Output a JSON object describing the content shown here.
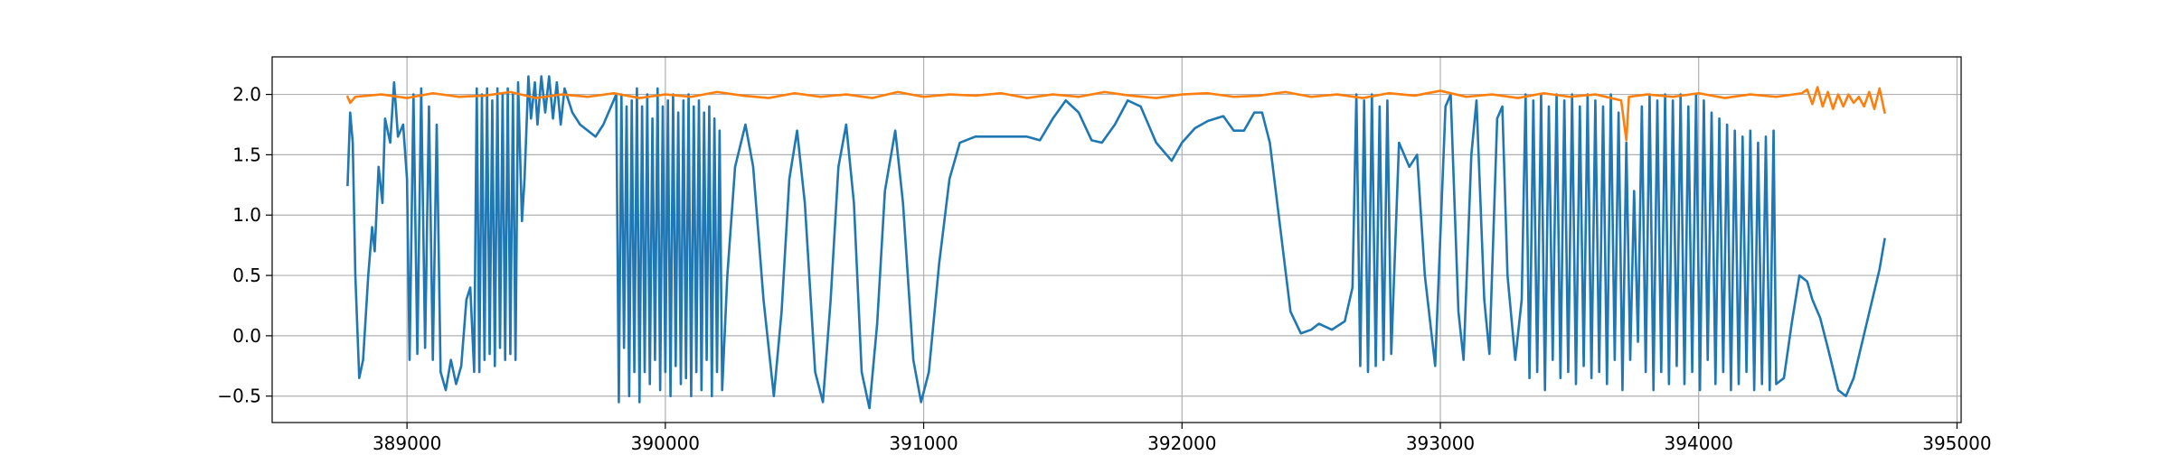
{
  "chart_data": {
    "type": "line",
    "xlim": [
      388478,
      395016
    ],
    "ylim": [
      -0.719,
      2.311
    ],
    "xticks": [
      389000,
      390000,
      391000,
      392000,
      393000,
      394000,
      395000
    ],
    "yticks": [
      {
        "value": -0.5,
        "label": "−0.5"
      },
      {
        "value": 0,
        "label": "0.0"
      },
      0.5,
      {
        "value": 1,
        "label": "1.0"
      },
      1.5,
      {
        "value": 2,
        "label": "2.0"
      }
    ],
    "grid": true,
    "series": [
      {
        "color": "#1f77b4",
        "x": [
          388770,
          388780,
          388790,
          388800,
          388815,
          388830,
          388850,
          388865,
          388875,
          388890,
          388905,
          388915,
          388935,
          388950,
          388965,
          388985,
          389000,
          389010,
          389025,
          389040,
          389055,
          389070,
          389085,
          389100,
          389115,
          389130,
          389150,
          389170,
          389190,
          389210,
          389230,
          389245,
          389260,
          389270,
          389280,
          389290,
          389300,
          389310,
          389320,
          389330,
          389340,
          389350,
          389360,
          389370,
          389380,
          389390,
          389400,
          389410,
          389420,
          389430,
          389445,
          389455,
          389470,
          389480,
          389495,
          389505,
          389520,
          389535,
          389550,
          389565,
          389580,
          389595,
          389610,
          389640,
          389670,
          389700,
          389730,
          389760,
          389790,
          389810,
          389820,
          389830,
          389840,
          389850,
          389860,
          389870,
          389880,
          389890,
          389900,
          389910,
          389920,
          389930,
          389940,
          389950,
          389960,
          389970,
          389980,
          389990,
          390000,
          390010,
          390020,
          390030,
          390040,
          390050,
          390060,
          390070,
          390080,
          390090,
          390100,
          390110,
          390120,
          390130,
          390140,
          390150,
          390160,
          390170,
          390180,
          390190,
          390200,
          390210,
          390220,
          390240,
          390270,
          390310,
          390340,
          390380,
          390420,
          390450,
          390480,
          390510,
          390540,
          390580,
          390610,
          390640,
          390670,
          390700,
          390730,
          390760,
          390790,
          390820,
          390850,
          390890,
          390920,
          390960,
          390990,
          391020,
          391060,
          391100,
          391140,
          391200,
          391300,
          391400,
          391450,
          391500,
          391550,
          391600,
          391650,
          391690,
          391740,
          391790,
          391840,
          391900,
          391960,
          392000,
          392050,
          392100,
          392160,
          392200,
          392240,
          392280,
          392310,
          392340,
          392380,
          392420,
          392460,
          392500,
          392530,
          392580,
          392630,
          392660,
          392675,
          392690,
          392705,
          392720,
          392735,
          392750,
          392765,
          392780,
          392795,
          392810,
          392840,
          392880,
          392910,
          392940,
          392980,
          393020,
          393040,
          393070,
          393090,
          393120,
          393140,
          393170,
          393190,
          393220,
          393240,
          393260,
          393290,
          393315,
          393330,
          393345,
          393360,
          393375,
          393390,
          393405,
          393420,
          393435,
          393450,
          393465,
          393480,
          393495,
          393510,
          393525,
          393540,
          393555,
          393570,
          393585,
          393600,
          393615,
          393630,
          393645,
          393660,
          393675,
          393690,
          393705,
          393720,
          393735,
          393750,
          393765,
          393780,
          393795,
          393810,
          393825,
          393840,
          393855,
          393870,
          393885,
          393900,
          393915,
          393930,
          393945,
          393960,
          393975,
          393990,
          394005,
          394020,
          394035,
          394050,
          394065,
          394080,
          394095,
          394110,
          394125,
          394140,
          394155,
          394170,
          394185,
          394200,
          394215,
          394230,
          394245,
          394260,
          394275,
          394290,
          394300,
          394330,
          394360,
          394390,
          394420,
          394440,
          394470,
          394500,
          394540,
          394570,
          394600,
          394650,
          394700,
          394720
        ],
        "values": [
          1.25,
          1.85,
          1.6,
          0.5,
          -0.35,
          -0.2,
          0.5,
          0.9,
          0.7,
          1.4,
          1.1,
          1.8,
          1.6,
          2.1,
          1.65,
          1.75,
          1.3,
          -0.2,
          2.0,
          -0.15,
          2.05,
          -0.1,
          1.9,
          -0.2,
          1.75,
          -0.3,
          -0.45,
          -0.2,
          -0.4,
          -0.25,
          0.3,
          0.4,
          -0.3,
          2.05,
          -0.3,
          2.0,
          -0.2,
          2.05,
          -0.15,
          1.95,
          -0.25,
          2.05,
          -0.1,
          2.0,
          -0.2,
          2.05,
          -0.15,
          2.0,
          -0.2,
          2.1,
          0.95,
          1.3,
          2.15,
          1.8,
          2.1,
          1.75,
          2.15,
          1.85,
          2.15,
          1.8,
          2.1,
          1.75,
          2.05,
          1.85,
          1.75,
          1.7,
          1.65,
          1.75,
          1.9,
          2.0,
          -0.55,
          2.0,
          -0.1,
          1.9,
          -0.5,
          1.95,
          -0.3,
          2.05,
          -0.55,
          1.9,
          -0.3,
          2.0,
          -0.4,
          1.8,
          -0.2,
          2.05,
          -0.45,
          1.9,
          -0.3,
          1.95,
          -0.5,
          2.0,
          -0.25,
          1.85,
          -0.4,
          1.95,
          -0.35,
          2.0,
          -0.5,
          1.9,
          -0.3,
          1.95,
          -0.45,
          1.85,
          -0.2,
          1.9,
          -0.5,
          1.8,
          -0.3,
          1.7,
          -0.45,
          0.5,
          1.4,
          1.75,
          1.4,
          0.3,
          -0.5,
          0.2,
          1.3,
          1.7,
          1.1,
          -0.3,
          -0.55,
          0.3,
          1.4,
          1.75,
          1.1,
          -0.3,
          -0.6,
          0.1,
          1.2,
          1.7,
          1.1,
          -0.2,
          -0.55,
          -0.3,
          0.6,
          1.3,
          1.6,
          1.65,
          1.65,
          1.65,
          1.62,
          1.8,
          1.95,
          1.85,
          1.62,
          1.6,
          1.75,
          1.95,
          1.9,
          1.6,
          1.45,
          1.6,
          1.72,
          1.78,
          1.82,
          1.7,
          1.7,
          1.85,
          1.85,
          1.6,
          0.9,
          0.2,
          0.02,
          0.05,
          0.1,
          0.05,
          0.12,
          0.4,
          2.0,
          -0.25,
          1.95,
          -0.3,
          2.0,
          -0.25,
          1.9,
          -0.2,
          1.95,
          -0.15,
          1.6,
          1.4,
          1.5,
          0.5,
          -0.25,
          1.9,
          2.0,
          0.2,
          -0.2,
          1.5,
          1.95,
          0.3,
          -0.15,
          1.8,
          1.9,
          0.5,
          -0.2,
          0.3,
          2.0,
          -0.35,
          1.95,
          -0.3,
          2.0,
          -0.45,
          1.9,
          -0.2,
          2.0,
          -0.35,
          1.95,
          -0.3,
          2.0,
          -0.4,
          1.9,
          -0.25,
          2.0,
          -0.35,
          1.95,
          -0.3,
          1.9,
          -0.4,
          2.0,
          -0.2,
          1.85,
          -0.45,
          1.6,
          -0.2,
          1.2,
          -0.05,
          1.9,
          -0.3,
          2.0,
          -0.45,
          1.95,
          -0.3,
          2.0,
          -0.4,
          1.95,
          -0.25,
          2.0,
          -0.4,
          1.9,
          -0.3,
          2.0,
          -0.45,
          1.95,
          -0.2,
          1.85,
          -0.4,
          1.8,
          -0.3,
          1.75,
          -0.45,
          1.7,
          -0.4,
          1.65,
          -0.3,
          1.7,
          -0.45,
          1.6,
          -0.4,
          1.65,
          -0.45,
          1.7,
          -0.4,
          -0.35,
          0.1,
          0.5,
          0.45,
          0.3,
          0.15,
          -0.1,
          -0.45,
          -0.5,
          -0.35,
          0.1,
          0.55,
          0.8
        ]
      },
      {
        "color": "#ff7f0e",
        "x": [
          388770,
          388780,
          388800,
          388900,
          389000,
          389100,
          389200,
          389300,
          389400,
          389500,
          389600,
          389700,
          389800,
          389900,
          390000,
          390100,
          390200,
          390300,
          390400,
          390500,
          390600,
          390700,
          390800,
          390900,
          391000,
          391100,
          391200,
          391300,
          391400,
          391500,
          391600,
          391700,
          391800,
          391900,
          392000,
          392100,
          392200,
          392300,
          392400,
          392500,
          392600,
          392700,
          392800,
          392900,
          393000,
          393100,
          393200,
          393300,
          393400,
          393500,
          393600,
          393700,
          393720,
          393730,
          393800,
          393900,
          394000,
          394100,
          394200,
          394300,
          394400,
          394420,
          394440,
          394460,
          394480,
          394500,
          394520,
          394540,
          394560,
          394580,
          394600,
          394620,
          394640,
          394660,
          394680,
          394700,
          394720
        ],
        "values": [
          1.98,
          1.93,
          1.98,
          2.0,
          1.97,
          2.01,
          1.98,
          1.99,
          2.02,
          1.97,
          2.0,
          1.98,
          2.01,
          1.97,
          2.0,
          1.98,
          2.02,
          1.99,
          1.97,
          2.01,
          1.98,
          2.0,
          1.97,
          2.02,
          1.98,
          2.0,
          1.99,
          2.01,
          1.97,
          2.0,
          1.98,
          2.02,
          1.99,
          1.97,
          2.0,
          2.01,
          1.98,
          1.99,
          2.02,
          1.98,
          2.0,
          1.97,
          2.01,
          1.99,
          2.03,
          1.98,
          2.0,
          1.97,
          2.01,
          1.98,
          2.0,
          1.95,
          1.62,
          1.98,
          2.0,
          1.98,
          2.01,
          1.97,
          2.0,
          1.98,
          2.01,
          2.04,
          1.92,
          2.06,
          1.9,
          2.02,
          1.88,
          2.0,
          1.9,
          2.0,
          1.93,
          1.98,
          1.9,
          2.02,
          1.88,
          2.05,
          1.85
        ]
      }
    ]
  }
}
